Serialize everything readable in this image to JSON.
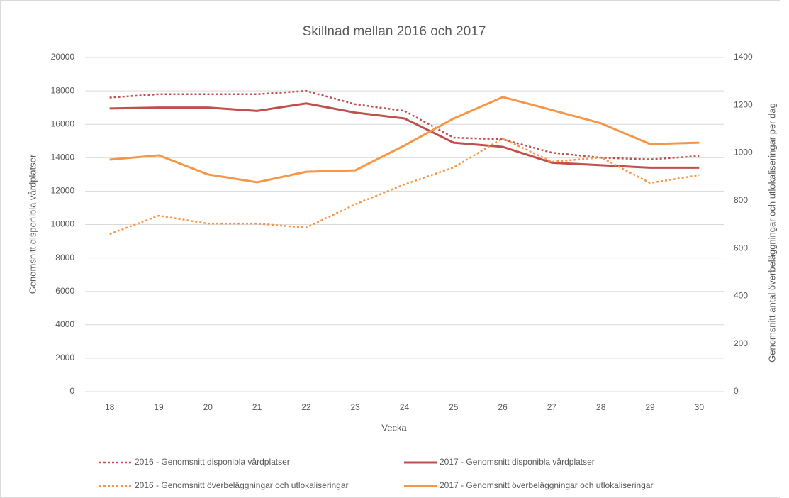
{
  "chart_data": {
    "type": "line",
    "title": "Skillnad mellan 2016 och 2017",
    "xlabel": "Vecka",
    "ylabel": "Genomsnitt disponibla vårdplatser",
    "y2label": "Genomsnitt antal överbeläggningar och utlokaliseringar per dag",
    "categories": [
      "18",
      "19",
      "20",
      "21",
      "22",
      "23",
      "24",
      "25",
      "26",
      "27",
      "28",
      "29",
      "30"
    ],
    "series": [
      {
        "name": "2016 - Genomsnitt disponibla vårdplatser",
        "color": "#c0504d",
        "dash": "dotted",
        "values": [
          17600,
          17800,
          17800,
          17800,
          18000,
          17200,
          16800,
          15200,
          15100,
          14300,
          14000,
          13900,
          14100
        ]
      },
      {
        "name": "2017 - Genomsnitt disponibla vårdplatser",
        "color": "#c0504d",
        "dash": "solid",
        "values": [
          16950,
          17000,
          17000,
          16800,
          17250,
          16700,
          16350,
          14900,
          14650,
          13700,
          13550,
          13400,
          13400
        ]
      },
      {
        "name": "2016 - Genomsnitt överbeläggningar och utlokaliseringar",
        "color": "#f79646",
        "dash": "dotted",
        "axis": "y2",
        "values": [
          660,
          737,
          704,
          704,
          687,
          785,
          868,
          939,
          1061,
          963,
          981,
          874,
          907
        ]
      },
      {
        "name": "2017 - Genomsnitt överbeläggningar och utlokaliseringar",
        "color": "#f79646",
        "dash": "solid",
        "axis": "y2",
        "values": [
          972,
          990,
          910,
          877,
          921,
          927,
          1031,
          1144,
          1234,
          1180,
          1124,
          1037,
          1043
        ]
      }
    ],
    "ylim": [
      0,
      20000
    ],
    "yticks": [
      0,
      2000,
      4000,
      6000,
      8000,
      10000,
      12000,
      14000,
      16000,
      18000,
      20000
    ],
    "y2lim": [
      0,
      1400
    ],
    "y2ticks": [
      0,
      200,
      400,
      600,
      800,
      1000,
      1200,
      1400
    ],
    "grid": true,
    "legend": "bottom"
  }
}
